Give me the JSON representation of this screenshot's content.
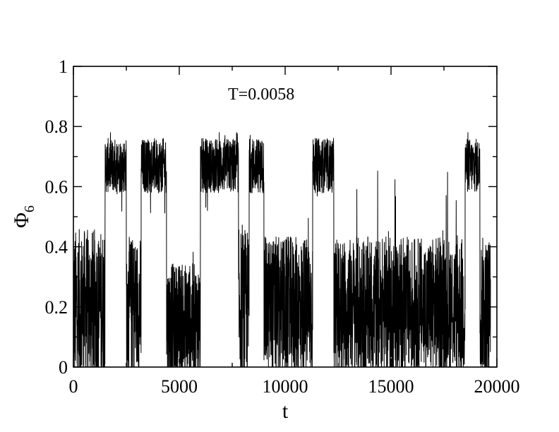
{
  "chart_data": {
    "type": "line",
    "title": "",
    "annotation": "T=0.0058",
    "xlabel": "t",
    "ylabel_main": "Φ",
    "ylabel_sub": "6",
    "xlim": [
      0,
      20000
    ],
    "ylim": [
      0,
      1
    ],
    "x_ticks": [
      0,
      5000,
      10000,
      15000,
      20000
    ],
    "x_tick_labels": [
      "0",
      "5000",
      "10000",
      "15000",
      "20000"
    ],
    "y_ticks": [
      0,
      0.2,
      0.4,
      0.6,
      0.8,
      1
    ],
    "y_tick_labels": [
      "0",
      "0.2",
      "0.4",
      "0.6",
      "0.8",
      "1"
    ],
    "grid": false,
    "line_color": "#000000",
    "series": [
      {
        "segments": [
          {
            "x": [
              0,
              1500
            ],
            "mean": 0.2,
            "spread": 0.2
          },
          {
            "x": [
              1500,
              2500
            ],
            "mean": 0.67,
            "spread": 0.07
          },
          {
            "x": [
              2500,
              3200
            ],
            "mean": 0.2,
            "spread": 0.18
          },
          {
            "x": [
              3200,
              4400
            ],
            "mean": 0.67,
            "spread": 0.07
          },
          {
            "x": [
              4400,
              6000
            ],
            "mean": 0.15,
            "spread": 0.15
          },
          {
            "x": [
              6000,
              7800
            ],
            "mean": 0.67,
            "spread": 0.07
          },
          {
            "x": [
              7800,
              8300
            ],
            "mean": 0.2,
            "spread": 0.2
          },
          {
            "x": [
              8300,
              9000
            ],
            "mean": 0.67,
            "spread": 0.07
          },
          {
            "x": [
              9000,
              11300
            ],
            "mean": 0.2,
            "spread": 0.18
          },
          {
            "x": [
              11300,
              12300
            ],
            "mean": 0.67,
            "spread": 0.07
          },
          {
            "x": [
              12300,
              18500
            ],
            "mean": 0.2,
            "spread": 0.18
          },
          {
            "x": [
              18500,
              19200
            ],
            "mean": 0.67,
            "spread": 0.07
          },
          {
            "x": [
              19200,
              19700
            ],
            "mean": 0.2,
            "spread": 0.18
          }
        ]
      }
    ]
  }
}
